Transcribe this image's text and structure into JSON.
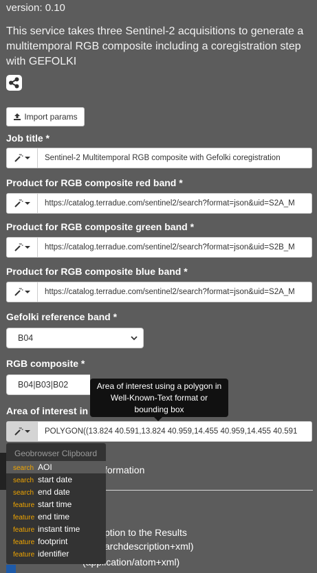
{
  "version": "version: 0.10",
  "description": "This service takes three Sentinel-2 acquisitions to generate a multitemporal RGB composite including a coregistration step with GEFOLKI",
  "import_label": "Import params",
  "fields": {
    "job_title": {
      "label": "Job title *",
      "value": "Sentinel-2 Multitemporal RGB composite with Gefolki coregistration"
    },
    "red": {
      "label": "Product for RGB composite red band *",
      "value": "https://catalog.terradue.com/sentinel2/search?format=json&uid=S2A_M"
    },
    "green": {
      "label": "Product for RGB composite green band *",
      "value": "https://catalog.terradue.com/sentinel2/search?format=json&uid=S2B_M"
    },
    "blue": {
      "label": "Product for RGB composite blue band *",
      "value": "https://catalog.terradue.com/sentinel2/search?format=json&uid=S2A_M"
    },
    "gefolki": {
      "label": "Gefolki reference band *",
      "value": "B04"
    },
    "rgb": {
      "label": "RGB composite *",
      "value": "B04|B03|B02"
    },
    "aoi": {
      "label": "Area of interest in WKT or b",
      "value": "POLYGON((13.824 40.591,13.824 40.959,14.455 40.959,14.455 40.591"
    }
  },
  "tooltip": {
    "line1": "Area of interest using a polygon in",
    "line2": "Well-Known-Text format or",
    "line3": "bounding box"
  },
  "background_text": {
    "formation": "formation",
    "results": "ption to the Results",
    "searchdesc": "archdescription+xml)",
    "atom": "(application/atom+xml)"
  },
  "clipboard": {
    "header": "Geobrowser Clipboard",
    "items": [
      {
        "type": "search",
        "label": "AOI"
      },
      {
        "type": "search",
        "label": "start date"
      },
      {
        "type": "search",
        "label": "end date"
      },
      {
        "type": "feature",
        "label": "start time"
      },
      {
        "type": "feature",
        "label": "end time"
      },
      {
        "type": "feature",
        "label": "instant time"
      },
      {
        "type": "feature",
        "label": "footprint"
      },
      {
        "type": "feature",
        "label": "identifier"
      }
    ]
  },
  "colors": {
    "background": "#5c5c5c",
    "menu": "#333333",
    "menu_type": "#f0a500"
  }
}
